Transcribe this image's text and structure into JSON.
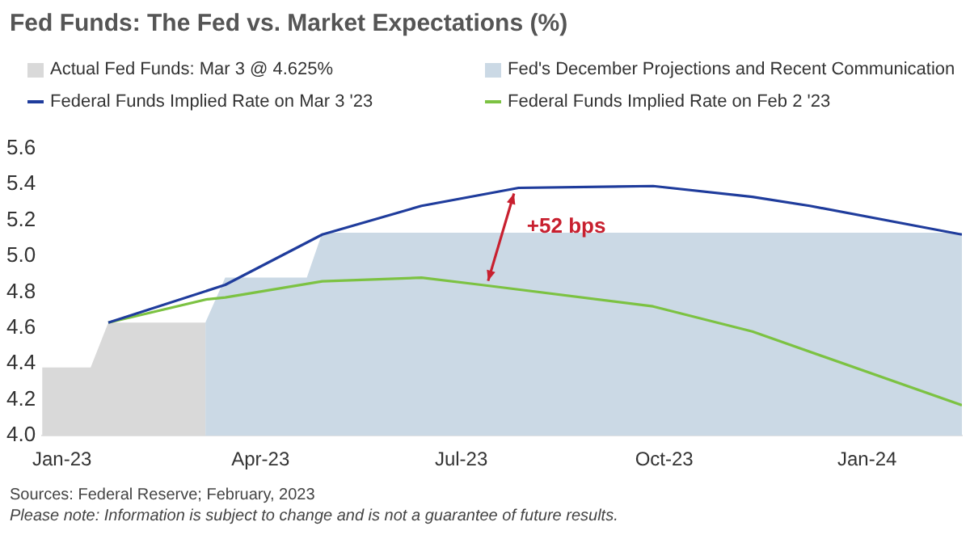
{
  "chart_data": {
    "type": "line",
    "title": "Fed Funds: The Fed vs. Market Expectations (%)",
    "xlim": [
      "2022-12-23",
      "2024-02-13"
    ],
    "xticks": [
      {
        "value": "2023-01-01",
        "label": "Jan-23"
      },
      {
        "value": "2023-04-01",
        "label": "Apr-23"
      },
      {
        "value": "2023-07-01",
        "label": "Jul-23"
      },
      {
        "value": "2023-10-01",
        "label": "Oct-23"
      },
      {
        "value": "2024-01-01",
        "label": "Jan-24"
      }
    ],
    "ylim": [
      4.0,
      5.6
    ],
    "yticks": [
      {
        "value": 4,
        "label": "4.0"
      },
      4.2,
      4.4,
      4.6,
      4.8,
      {
        "value": 5,
        "label": "5.0"
      },
      5.2,
      5.4,
      5.6
    ],
    "grid": false,
    "legend": "top",
    "marker": "none",
    "line_style": "solid",
    "series": [
      {
        "name": "Actual Fed Funds: Mar 3 @ 4.625%",
        "type": "area",
        "color": "#d9d9d9",
        "x": [
          "2022-12-23",
          "2023-01-14",
          "2023-01-22",
          "2023-03-07"
        ],
        "values": [
          4.38,
          4.38,
          4.63,
          4.63
        ]
      },
      {
        "name": "Fed's December Projections and Recent Communication",
        "type": "area",
        "color": "#cbd9e5",
        "x": [
          "2023-03-07",
          "2023-03-16",
          "2023-04-22",
          "2023-04-29",
          "2024-02-13"
        ],
        "values": [
          4.63,
          4.88,
          4.88,
          5.13,
          5.13
        ]
      },
      {
        "name": "Federal Funds Implied Rate on Mar 3 '23",
        "type": "line",
        "color": "#1f3c9c",
        "x": [
          "2023-01-22",
          "2023-03-16",
          "2023-04-29",
          "2023-06-13",
          "2023-07-27",
          "2023-09-26",
          "2023-11-10",
          "2023-12-06",
          "2024-02-13"
        ],
        "values": [
          4.63,
          4.84,
          5.12,
          5.28,
          5.38,
          5.39,
          5.33,
          5.28,
          5.12
        ]
      },
      {
        "name": "Federal Funds Implied Rate on Feb 2 '23",
        "type": "line",
        "color": "#7cc242",
        "x": [
          "2023-01-22",
          "2023-03-08",
          "2023-03-16",
          "2023-04-29",
          "2023-06-13",
          "2023-07-10",
          "2023-09-26",
          "2023-11-10",
          "2024-02-13"
        ],
        "values": [
          4.63,
          4.76,
          4.77,
          4.86,
          4.88,
          4.84,
          4.72,
          4.58,
          4.17
        ]
      }
    ],
    "annotations": [
      "+52 bps",
      "Sources: Federal Reserve; February, 2023",
      "Please note: Information is subject to change and is not a guarantee of future results."
    ]
  }
}
